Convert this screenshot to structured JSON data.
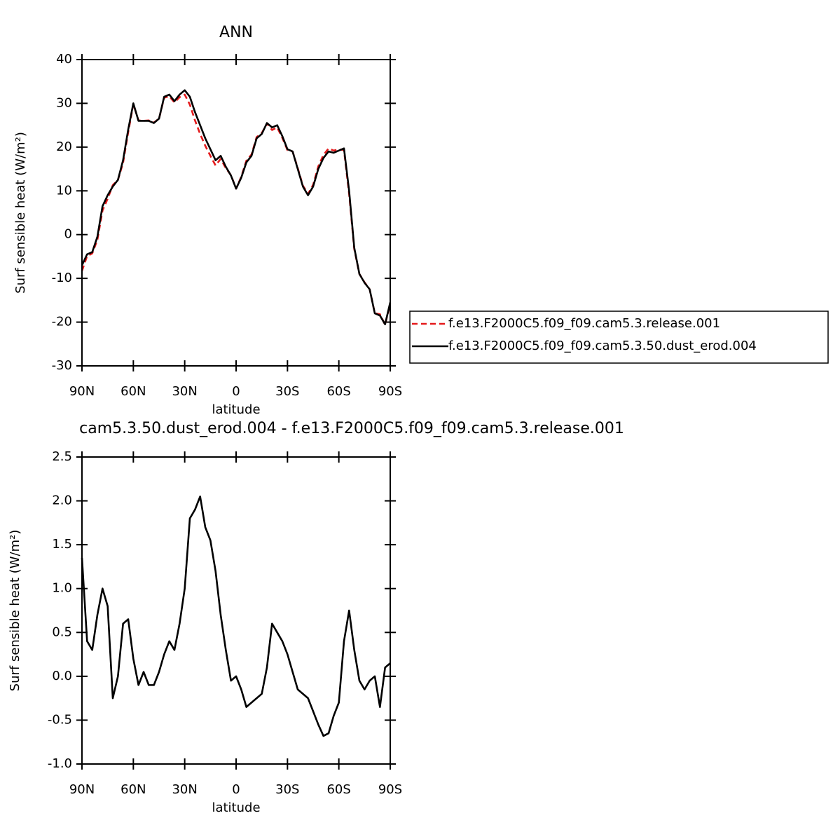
{
  "chart_data": [
    {
      "type": "line",
      "title": "ANN",
      "xlabel": "latitude",
      "ylabel": "Surf  sensible heat (W/m²)",
      "x": [
        90,
        87,
        84,
        81,
        78,
        75,
        72,
        69,
        66,
        63,
        60,
        57,
        54,
        51,
        48,
        45,
        42,
        39,
        36,
        33,
        30,
        27,
        24,
        21,
        18,
        15,
        12,
        9,
        6,
        3,
        0,
        -3,
        -6,
        -9,
        -12,
        -15,
        -18,
        -21,
        -24,
        -27,
        -30,
        -33,
        -36,
        -39,
        -42,
        -45,
        -48,
        -51,
        -54,
        -57,
        -60,
        -63,
        -66,
        -69,
        -72,
        -75,
        -78,
        -81,
        -84,
        -87,
        -90
      ],
      "series": [
        {
          "name": "f.e13.F2000C5.f09_f09.cam5.3.release.001",
          "color": "#e41a1c",
          "dash": true,
          "values": [
            -8.3,
            -4.9,
            -4.3,
            -1.2,
            5.5,
            8.2,
            11.3,
            12.5,
            16.4,
            23.4,
            29.8,
            26.1,
            26.0,
            26.1,
            25.6,
            26.5,
            31.3,
            31.6,
            30.2,
            31.4,
            32.0,
            29.7,
            26.1,
            23.0,
            20.3,
            18.0,
            15.8,
            17.3,
            15.2,
            13.6,
            10.5,
            13.2,
            16.9,
            18.3,
            22.3,
            23.2,
            25.4,
            23.9,
            24.5,
            22.1,
            19.3,
            19.0,
            15.2,
            11.2,
            9.3,
            11.4,
            15.6,
            18.2,
            19.7,
            19.2,
            19.5,
            19.3,
            9.3,
            -3.3,
            -9.0,
            -10.9,
            -12.5,
            -18.0,
            -18.2,
            -20.6,
            -15.7
          ]
        },
        {
          "name": "f.e13.F2000C5.f09_f09.cam5.3.50.dust_erod.004",
          "color": "#000000",
          "dash": false,
          "values": [
            -7,
            -4.5,
            -4,
            -0.5,
            6.5,
            9,
            11,
            12.5,
            17,
            24,
            30,
            26,
            26,
            26,
            25.5,
            26.5,
            31.5,
            32,
            30.5,
            32,
            33,
            31.5,
            28,
            25,
            22,
            19.5,
            17,
            18,
            15.5,
            13.5,
            10.5,
            13,
            16.5,
            18,
            22,
            23,
            25.5,
            24.5,
            25,
            22.5,
            19.5,
            19,
            15,
            11,
            9,
            11,
            15,
            17.5,
            19,
            18.7,
            19.2,
            19.7,
            10,
            -3,
            -9,
            -11,
            -12.5,
            -18,
            -18.5,
            -20.5,
            -15.5
          ]
        }
      ],
      "xlim": [
        90,
        -90
      ],
      "xticks": [
        {
          "value": 90,
          "label": "90N"
        },
        {
          "value": 60,
          "label": "60N"
        },
        {
          "value": 30,
          "label": "30N"
        },
        0,
        {
          "value": -30,
          "label": "30S"
        },
        {
          "value": -60,
          "label": "60S"
        },
        {
          "value": -90,
          "label": "90S"
        }
      ],
      "ylim": [
        -30,
        40
      ],
      "yticks": [
        -30,
        -20,
        -10,
        0,
        10,
        20,
        30,
        40
      ],
      "legend": "outside-right"
    },
    {
      "type": "line",
      "title": "cam5.3.50.dust_erod.004 - f.e13.F2000C5.f09_f09.cam5.3.release.001",
      "xlabel": "latitude",
      "ylabel": "Surf  sensible heat (W/m²)",
      "x": [
        90,
        87,
        84,
        81,
        78,
        75,
        72,
        69,
        66,
        63,
        60,
        57,
        54,
        51,
        48,
        45,
        42,
        39,
        36,
        33,
        30,
        27,
        24,
        21,
        18,
        15,
        12,
        9,
        6,
        3,
        0,
        -3,
        -6,
        -9,
        -12,
        -15,
        -18,
        -21,
        -24,
        -27,
        -30,
        -33,
        -36,
        -39,
        -42,
        -45,
        -48,
        -51,
        -54,
        -57,
        -60,
        -63,
        -66,
        -69,
        -72,
        -75,
        -78,
        -81,
        -84,
        -87,
        -90
      ],
      "series": [
        {
          "color": "#000000",
          "dash": false,
          "values": [
            1.35,
            0.4,
            0.3,
            0.7,
            1.0,
            0.8,
            -0.25,
            0.0,
            0.6,
            0.65,
            0.2,
            -0.1,
            0.05,
            -0.1,
            -0.1,
            0.05,
            0.25,
            0.4,
            0.3,
            0.6,
            1.0,
            1.8,
            1.9,
            2.05,
            1.7,
            1.55,
            1.2,
            0.7,
            0.3,
            -0.05,
            0.0,
            -0.15,
            -0.35,
            -0.3,
            -0.25,
            -0.2,
            0.1,
            0.6,
            0.5,
            0.4,
            0.25,
            0.05,
            -0.15,
            -0.2,
            -0.25,
            -0.4,
            -0.55,
            -0.68,
            -0.65,
            -0.45,
            -0.3,
            0.4,
            0.75,
            0.3,
            -0.05,
            -0.15,
            -0.05,
            0.0,
            -0.35,
            0.1,
            0.15
          ]
        }
      ],
      "xlim": [
        90,
        -90
      ],
      "xticks": [
        {
          "value": 90,
          "label": "90N"
        },
        {
          "value": 60,
          "label": "60N"
        },
        {
          "value": 30,
          "label": "30N"
        },
        0,
        {
          "value": -30,
          "label": "30S"
        },
        {
          "value": -60,
          "label": "60S"
        },
        {
          "value": -90,
          "label": "90S"
        }
      ],
      "ylim": [
        -1,
        2.5
      ],
      "yticks": [
        {
          "value": -1,
          "label": "-1.0"
        },
        -0.5,
        {
          "value": 0,
          "label": "0.0"
        },
        0.5,
        {
          "value": 1,
          "label": "1.0"
        },
        1.5,
        {
          "value": 2,
          "label": "2.0"
        },
        2.5
      ]
    }
  ]
}
